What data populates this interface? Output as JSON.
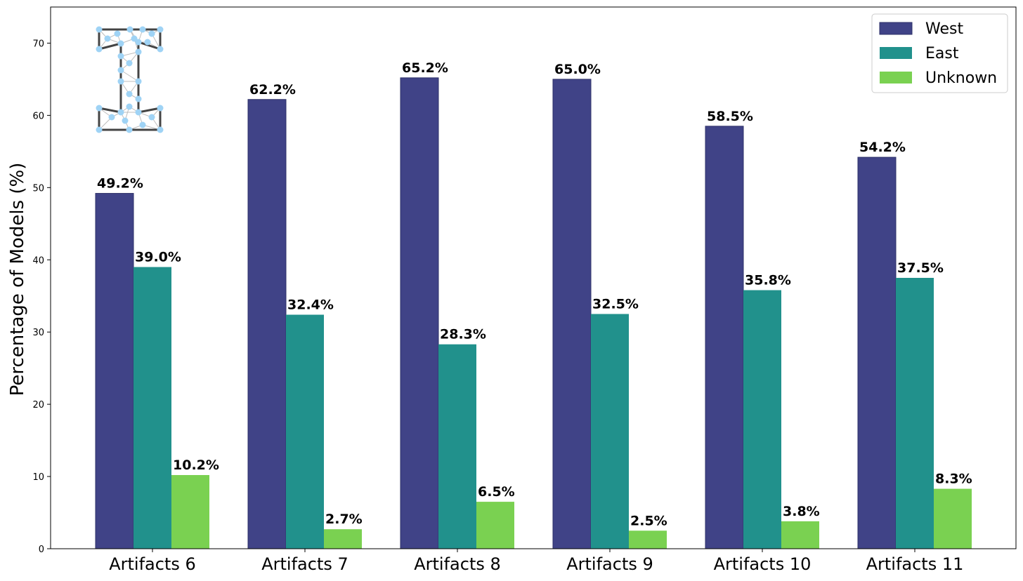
{
  "chart_data": {
    "type": "bar",
    "categories": [
      "Artifacts 6",
      "Artifacts 7",
      "Artifacts 8",
      "Artifacts 9",
      "Artifacts 10",
      "Artifacts 11"
    ],
    "series": [
      {
        "name": "West",
        "color": "#404387",
        "values": [
          49.2,
          62.2,
          65.2,
          65.0,
          58.5,
          54.2
        ],
        "labels": [
          "49.2%",
          "62.2%",
          "65.2%",
          "65.0%",
          "58.5%",
          "54.2%"
        ]
      },
      {
        "name": "East",
        "color": "#21918c",
        "values": [
          39.0,
          32.4,
          28.3,
          32.5,
          35.8,
          37.5
        ],
        "labels": [
          "39.0%",
          "32.4%",
          "28.3%",
          "32.5%",
          "35.8%",
          "37.5%"
        ]
      },
      {
        "name": "Unknown",
        "color": "#7ad151",
        "values": [
          10.2,
          2.7,
          6.5,
          2.5,
          3.8,
          8.3
        ],
        "labels": [
          "10.2%",
          "2.7%",
          "6.5%",
          "2.5%",
          "3.8%",
          "8.3%"
        ]
      }
    ],
    "ylabel": "Percentage of Models (%)",
    "xlabel": "",
    "ylim": [
      0,
      75
    ],
    "yticks": [
      "0",
      "10",
      "20",
      "30",
      "40",
      "50",
      "60",
      "70"
    ],
    "grid": false,
    "legend_position": "top-right",
    "logo_icon": "network-graph-letter-I-icon"
  }
}
